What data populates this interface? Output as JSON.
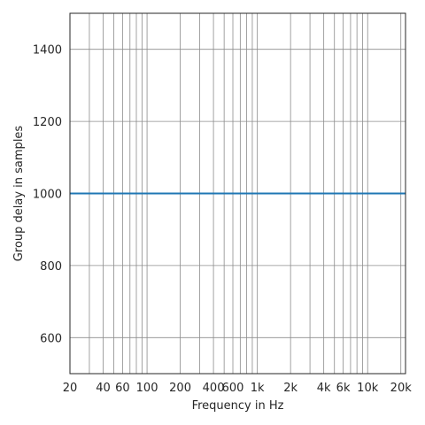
{
  "chart_data": {
    "type": "line",
    "title": "",
    "xlabel": "Frequency in Hz",
    "ylabel": "Group delay in samples",
    "x_scale": "log",
    "xlim": [
      20,
      22050
    ],
    "ylim": [
      500,
      1500
    ],
    "grid": true,
    "x_ticks": [
      {
        "value": 20,
        "label": "20"
      },
      {
        "value": 40,
        "label": "40"
      },
      {
        "value": 60,
        "label": "60"
      },
      {
        "value": 100,
        "label": "100"
      },
      {
        "value": 200,
        "label": "200"
      },
      {
        "value": 400,
        "label": "400"
      },
      {
        "value": 600,
        "label": "600"
      },
      {
        "value": 1000,
        "label": "1k"
      },
      {
        "value": 2000,
        "label": "2k"
      },
      {
        "value": 4000,
        "label": "4k"
      },
      {
        "value": 6000,
        "label": "6k"
      },
      {
        "value": 10000,
        "label": "10k"
      },
      {
        "value": 20000,
        "label": "20k"
      }
    ],
    "x_minor_grid": [
      30,
      50,
      70,
      80,
      90,
      300,
      500,
      700,
      800,
      900,
      3000,
      5000,
      7000,
      8000,
      9000
    ],
    "y_ticks": [
      {
        "value": 600,
        "label": "600"
      },
      {
        "value": 800,
        "label": "800"
      },
      {
        "value": 1000,
        "label": "1000"
      },
      {
        "value": 1200,
        "label": "1200"
      },
      {
        "value": 1400,
        "label": "1400"
      }
    ],
    "series": [
      {
        "color": "#1f77b4",
        "x": [
          20,
          22050
        ],
        "y": [
          1000,
          1000
        ]
      }
    ]
  }
}
